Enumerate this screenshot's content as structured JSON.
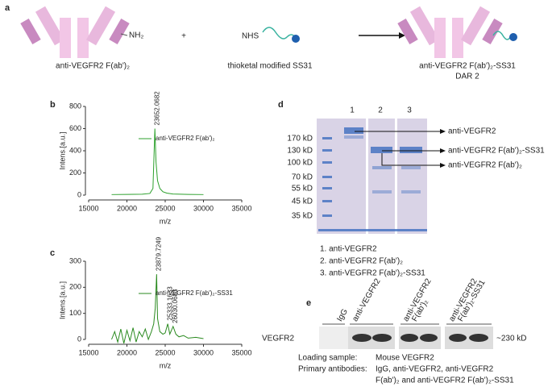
{
  "panels": {
    "a": "a",
    "b": "b",
    "c": "c",
    "d": "d",
    "e": "e"
  },
  "scheme": {
    "amine": "NH₂",
    "plus": "+",
    "nhs": "NHS",
    "left_label": "anti-VEGFR2 F(ab')₂",
    "middle_label": "thioketal modified SS31",
    "right_label": "anti-VEGFR2 F(ab')₂-SS31",
    "right_sublabel": "DAR 2"
  },
  "chart_data": [
    {
      "type": "line",
      "ylabel": "Intens.[a.u.]",
      "xlabel": "m/z",
      "xlim": [
        15000,
        35000
      ],
      "xticks": [
        15000,
        20000,
        25000,
        30000,
        35000
      ],
      "ylim": [
        0,
        800
      ],
      "yticks": [
        0,
        200,
        400,
        600,
        800
      ],
      "series": [
        {
          "name": "anti-VEGFR2 F(ab')₂",
          "color": "#2ca02c",
          "x": [
            18000,
            20000,
            22000,
            23000,
            23400,
            23652,
            23800,
            24000,
            24300,
            24700,
            25200,
            26000,
            28000,
            30000
          ],
          "values": [
            5,
            6,
            8,
            15,
            60,
            600,
            300,
            130,
            60,
            30,
            18,
            10,
            6,
            5
          ]
        }
      ],
      "peaks": [
        23652.0682
      ]
    },
    {
      "type": "line",
      "ylabel": "Intens.[a.u.]",
      "xlabel": "m/z",
      "xlim": [
        15000,
        35000
      ],
      "xticks": [
        15000,
        20000,
        25000,
        30000,
        35000
      ],
      "ylim": [
        0,
        300
      ],
      "yticks": [
        0,
        100,
        200,
        300
      ],
      "series": [
        {
          "name": "anti-VEGFR2 F(ab')₂-SS31",
          "color": "#2a8a1f",
          "x": [
            18000,
            18400,
            18800,
            19200,
            19600,
            20000,
            20400,
            20800,
            21200,
            21600,
            22000,
            22400,
            22800,
            23200,
            23500,
            23700,
            23880,
            24000,
            24300,
            24700,
            25000,
            25333,
            25600,
            26030,
            26400,
            26800,
            27400,
            28000,
            29000,
            30000
          ],
          "values": [
            0,
            30,
            -10,
            40,
            -15,
            35,
            -5,
            45,
            -10,
            30,
            10,
            40,
            0,
            30,
            60,
            120,
            250,
            80,
            30,
            20,
            25,
            60,
            20,
            50,
            20,
            10,
            15,
            5,
            8,
            3
          ]
        }
      ],
      "peaks": [
        23879.7249,
        25333.1633,
        26030.0683
      ]
    }
  ],
  "gel": {
    "lanes": [
      "1",
      "2",
      "3"
    ],
    "markers": [
      "170 kD",
      "130 kD",
      "100 kD",
      "70 kD",
      "55 kD",
      "45 kD",
      "35 kD"
    ],
    "arrows": [
      "anti-VEGFR2",
      "anti-VEGFR2 F(ab')₂-SS31",
      "anti-VEGFR2 F(ab')₂"
    ],
    "legend": [
      "1. anti-VEGFR2",
      "2. anti-VEGFR2 F(ab')₂",
      "3. anti-VEGFR2 F(ab')₂-SS31"
    ]
  },
  "blot": {
    "columns": [
      [
        "IgG"
      ],
      [
        "anti-VEGFR2"
      ],
      [
        "anti-VEGFR2",
        "F(ab')₂"
      ],
      [
        "anti-VEGFR2",
        "F(ab')₂-SS31"
      ]
    ],
    "row": "VEGFR2",
    "size": "~230 kD",
    "notes": [
      [
        "Loading sample:",
        "Mouse VEGFR2"
      ],
      [
        "Primary antibodies:",
        "IgG, anti-VEGFR2, anti-VEGFR2"
      ],
      [
        "",
        "F(ab')₂ and anti-VEGFR2 F(ab')₂-SS31"
      ]
    ]
  }
}
